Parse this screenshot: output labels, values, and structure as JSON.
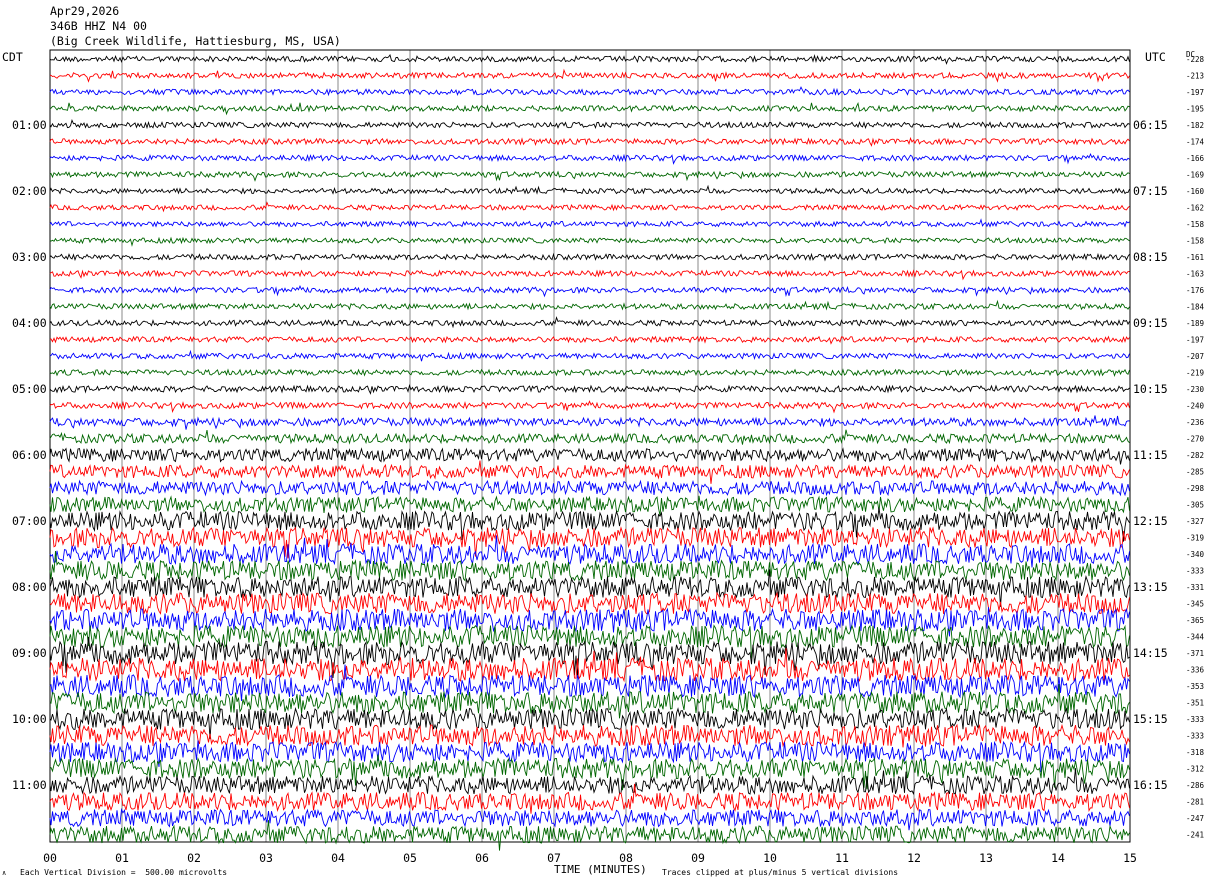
{
  "header": {
    "date": "Apr29,2026",
    "channel": "346B HHZ N4 00",
    "location": "(Big Creek Wildlife, Hattiesburg, MS, USA)"
  },
  "left_zone": "CDT",
  "right_zone": "UTC",
  "dc_label": "DC",
  "footer": {
    "xlabel": "TIME (MINUTES)",
    "scale_note": "Each Vertical Division =  500.00 microvolts",
    "clip_note": "Traces clipped at plus/minus 5 vertical divisions",
    "corner_mark": "∧"
  },
  "colors": {
    "cycle": [
      "#000000",
      "#ff0000",
      "#0000ff",
      "#006600"
    ],
    "grid": "#888888",
    "frame": "#000000"
  },
  "chart_data": {
    "type": "line",
    "x_ticks": [
      "00",
      "01",
      "02",
      "03",
      "04",
      "05",
      "06",
      "07",
      "08",
      "09",
      "10",
      "11",
      "12",
      "13",
      "14",
      "15"
    ],
    "xlim": [
      0,
      15
    ],
    "left_time_labels": [
      "01:00",
      "02:00",
      "03:00",
      "04:00",
      "05:00",
      "06:00",
      "07:00",
      "08:00",
      "09:00",
      "10:00",
      "11:00"
    ],
    "right_time_labels": [
      "06:15",
      "07:15",
      "08:15",
      "09:15",
      "10:15",
      "11:15",
      "12:15",
      "13:15",
      "14:15",
      "15:15",
      "16:15"
    ],
    "dc_offsets": [
      "-228",
      "-213",
      "-197",
      "-195",
      "-182",
      "-174",
      "-166",
      "-169",
      "-160",
      "-162",
      "-158",
      "-158",
      "-161",
      "-163",
      "-176",
      "-184",
      "-189",
      "-197",
      "-207",
      "-219",
      "-230",
      "-240",
      "-236",
      "-270",
      "-282",
      "-285",
      "-298",
      "-305",
      "-327",
      "-319",
      "-340",
      "-333",
      "-331",
      "-345",
      "-365",
      "-344",
      "-371",
      "-336",
      "-353",
      "-351",
      "-333",
      "-333",
      "-318",
      "-312",
      "-286",
      "-281",
      "-247",
      "-241"
    ],
    "amplitude_divisions": [
      0.55,
      0.55,
      0.55,
      0.55,
      0.55,
      0.55,
      0.55,
      0.55,
      0.5,
      0.5,
      0.5,
      0.5,
      0.55,
      0.55,
      0.55,
      0.55,
      0.55,
      0.55,
      0.55,
      0.55,
      0.6,
      0.6,
      0.8,
      0.9,
      1.3,
      1.3,
      1.4,
      1.5,
      1.9,
      2.0,
      2.0,
      2.0,
      2.1,
      2.1,
      2.2,
      2.2,
      2.3,
      2.3,
      2.2,
      2.2,
      2.1,
      2.1,
      2.0,
      2.0,
      1.8,
      1.8,
      1.7,
      1.7
    ]
  }
}
